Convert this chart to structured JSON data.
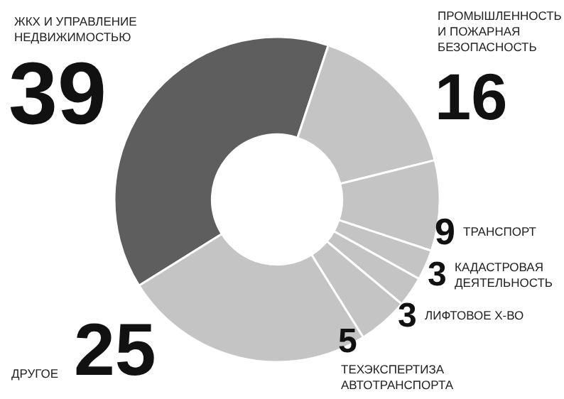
{
  "chart_data": {
    "type": "donut",
    "categories": [
      "ЖКХ И УПРАВЛЕНИЕ НЕДВИЖИМОСТЬЮ",
      "ПРОМЫШЛЕННОСТЬ И ПОЖАРНАЯ БЕЗОПАСНОСТЬ",
      "ТРАНСПОРТ",
      "КАДАСТРОВАЯ ДЕЯТЕЛЬНОСТЬ",
      "ЛИФТОВОЕ Х-ВО",
      "ТЕХЭКСПЕРТИЗА АВТОТРАНСПОРТА",
      "ДРУГОЕ"
    ],
    "values": [
      39,
      16,
      9,
      3,
      3,
      5,
      25
    ],
    "colors": [
      "#5e5e5e",
      "#c4c4c4",
      "#c4c4c4",
      "#c4c4c4",
      "#c4c4c4",
      "#c4c4c4",
      "#c4c4c4"
    ],
    "data_labels": true,
    "legend": false
  }
}
